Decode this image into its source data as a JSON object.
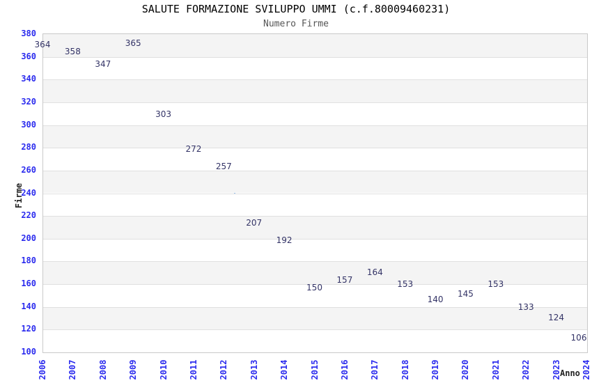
{
  "header": {
    "title": "SALUTE FORMAZIONE SVILUPPO UMMI (c.f.80009460231)",
    "subtitle": "Numero Firme"
  },
  "chart_data": {
    "type": "line",
    "title": "SALUTE FORMAZIONE SVILUPPO UMMI (c.f.80009460231)",
    "subtitle": "Numero Firme",
    "xlabel": "Anno",
    "ylabel": "Firme",
    "categories": [
      "2006",
      "2007",
      "2008",
      "2009",
      "2010",
      "2011",
      "2012",
      "2013",
      "2014",
      "2015",
      "2016",
      "2017",
      "2018",
      "2019",
      "2020",
      "2021",
      "2022",
      "2023",
      "2024"
    ],
    "values": [
      364,
      358,
      347,
      365,
      303,
      272,
      257,
      207,
      192,
      150,
      157,
      164,
      153,
      140,
      145,
      153,
      133,
      124,
      106
    ],
    "data_labels_visible": true,
    "ylim": [
      100,
      380
    ],
    "ytick_step": 20,
    "ytick_labels": [
      "380",
      "360",
      "340",
      "320",
      "300",
      "280",
      "260",
      "240",
      "220",
      "200",
      "180",
      "160",
      "140",
      "120",
      "100"
    ],
    "grid": "horizontal-bands",
    "legend_position": "none",
    "markers": "none"
  },
  "colors": {
    "line": "#7cb0e8",
    "tick_label": "#2b2bee",
    "data_label": "#333366",
    "band_fill": "#f4f4f4",
    "grid_line": "#e0e0e0",
    "plot_border": "#c9c9c9",
    "title": "#000000",
    "subtitle": "#555555",
    "axis_title": "#222222",
    "background": "#ffffff"
  }
}
